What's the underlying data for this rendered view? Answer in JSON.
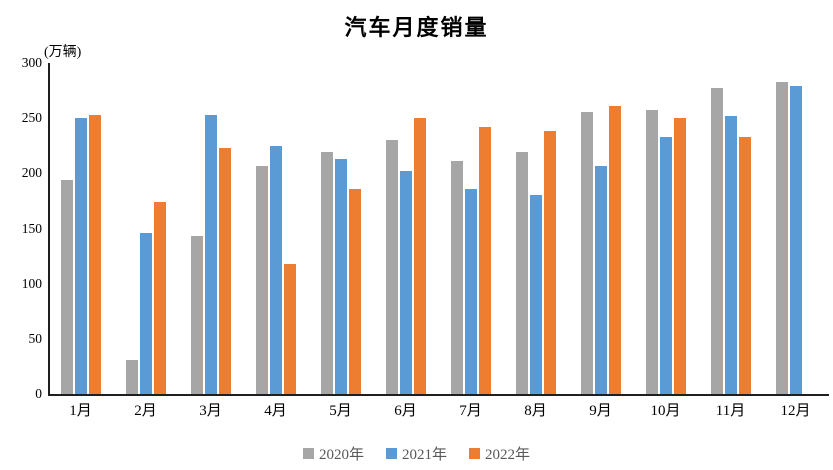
{
  "chart_data": {
    "type": "bar",
    "title": "汽车月度销量",
    "unit_label": "(万辆)",
    "xlabel": "",
    "ylabel": "",
    "categories": [
      "1月",
      "2月",
      "3月",
      "4月",
      "5月",
      "6月",
      "7月",
      "8月",
      "9月",
      "10月",
      "11月",
      "12月"
    ],
    "series": [
      {
        "name": "2020年",
        "color": "#A6A6A6",
        "values": [
          194,
          31,
          143,
          207,
          219,
          230,
          211,
          219,
          256,
          257,
          277,
          283
        ]
      },
      {
        "name": "2021年",
        "color": "#5B9BD5",
        "values": [
          250,
          146,
          253,
          225,
          213,
          202,
          186,
          180,
          207,
          233,
          252,
          279
        ]
      },
      {
        "name": "2022年",
        "color": "#ED7D31",
        "values": [
          253,
          174,
          223,
          118,
          186,
          250,
          242,
          238,
          261,
          250,
          233,
          null
        ]
      }
    ],
    "ylim": [
      0,
      300
    ],
    "yticks": [
      0,
      50,
      100,
      150,
      200,
      250,
      300
    ],
    "grid": false,
    "legend_position": "bottom",
    "axis_color": "#1f1f1f",
    "text_color": "#000000",
    "legend_text_color": "#595959"
  }
}
